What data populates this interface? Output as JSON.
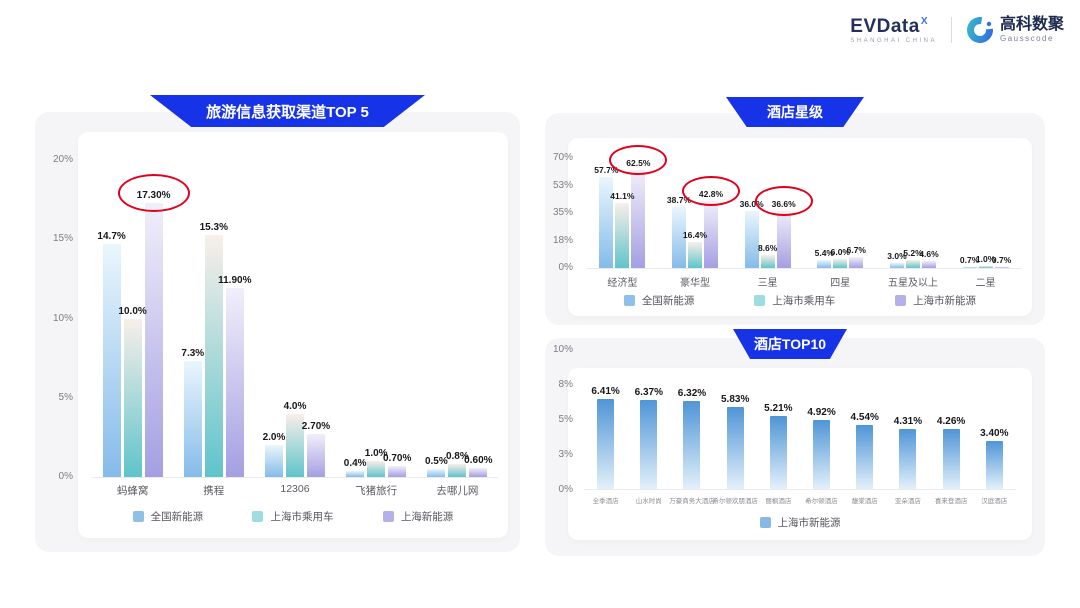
{
  "header": {
    "evdata_logo": {
      "text": "EVData",
      "superscript": "X",
      "subtext": "SHANGHAI CHINA"
    },
    "gausscode_logo": {
      "name": "高科数聚",
      "subtext": "Gausscode"
    }
  },
  "colors": {
    "banner_blue": "#1733e8",
    "highlight_circle_red": "#e3001b",
    "panel_gray": "#f5f5f7"
  },
  "chart_data": [
    {
      "type": "bar",
      "title": "旅游信息获取渠道TOP 5",
      "categories": [
        "蚂蜂窝",
        "携程",
        "12306",
        "飞猪旅行",
        "去哪儿网"
      ],
      "y_ticks": [
        "20%",
        "15%",
        "10%",
        "5%",
        "0%"
      ],
      "ylim": [
        0,
        20
      ],
      "legend_position": "bottom",
      "series": [
        {
          "name": "全国新能源",
          "values": [
            14.7,
            7.3,
            2.0,
            0.4,
            0.5
          ],
          "labels": [
            "14.7%",
            "7.3%",
            "2.0%",
            "0.4%",
            "0.5%"
          ],
          "color": {
            "top": "#eaf6fd",
            "bottom": "#85bbe9",
            "chip": "#8fc0e8"
          },
          "circled": []
        },
        {
          "name": "上海市乘用车",
          "values": [
            10.0,
            15.3,
            4.0,
            1.0,
            0.8
          ],
          "labels": [
            "10.0%",
            "15.3%",
            "4.0%",
            "1.0%",
            "0.8%"
          ],
          "color": {
            "top": "#f8efe9",
            "bottom": "#5fc4cb",
            "chip": "#9edce1"
          },
          "circled": []
        },
        {
          "name": "上海新能源",
          "values": [
            17.3,
            11.9,
            2.7,
            0.7,
            0.6
          ],
          "labels": [
            "17.30%",
            "11.90%",
            "2.70%",
            "0.70%",
            "0.60%"
          ],
          "color": {
            "top": "#f1effa",
            "bottom": "#a49fe2",
            "chip": "#b6b0ea"
          },
          "circled": [
            0
          ]
        }
      ]
    },
    {
      "type": "bar",
      "title": "酒店星级",
      "categories": [
        "经济型",
        "豪华型",
        "三星",
        "四星",
        "五星及以上",
        "二星"
      ],
      "y_ticks": [
        "70%",
        "53%",
        "35%",
        "18%",
        "0%"
      ],
      "ylim": [
        0,
        70
      ],
      "legend_position": "bottom",
      "series": [
        {
          "name": "全国新能源",
          "values": [
            57.7,
            38.7,
            36.0,
            5.4,
            3.0,
            0.7
          ],
          "labels": [
            "57.7%",
            "38.7%",
            "36.0%",
            "5.4%",
            "3.0%",
            "0.7%"
          ],
          "color": {
            "top": "#eaf6fd",
            "bottom": "#85bbe9",
            "chip": "#8fc0e8"
          },
          "circled": []
        },
        {
          "name": "上海市乘用车",
          "values": [
            41.1,
            16.4,
            8.6,
            6.0,
            5.2,
            1.0
          ],
          "labels": [
            "41.1%",
            "16.4%",
            "8.6%",
            "6.0%",
            "5.2%",
            "1.0%"
          ],
          "color": {
            "top": "#f8efe9",
            "bottom": "#5fc4cb",
            "chip": "#9edce1"
          },
          "circled": []
        },
        {
          "name": "上海市新能源",
          "values": [
            62.5,
            42.8,
            36.6,
            6.7,
            4.6,
            0.7
          ],
          "labels": [
            "62.5%",
            "42.8%",
            "36.6%",
            "6.7%",
            "4.6%",
            "0.7%"
          ],
          "color": {
            "top": "#f1effa",
            "bottom": "#a49fe2",
            "chip": "#b6b0ea"
          },
          "circled": [
            0,
            1,
            2
          ]
        }
      ]
    },
    {
      "type": "bar",
      "title": "酒店TOP10",
      "categories": [
        "全季酒店",
        "山水时尚",
        "万豪商务大酒店",
        "希尔顿欢朋酒店",
        "丽枫酒店",
        "希尔顿酒店",
        "馥棠酒店",
        "亚朵酒店",
        "喜来登酒店",
        "汉庭酒店"
      ],
      "y_ticks": [
        "10%",
        "8%",
        "5%",
        "3%",
        "0%"
      ],
      "ylim": [
        0,
        10
      ],
      "legend_position": "bottom",
      "series": [
        {
          "name": "上海市新能源",
          "values": [
            6.41,
            6.37,
            6.32,
            5.83,
            5.21,
            4.92,
            4.54,
            4.31,
            4.26,
            3.4
          ],
          "labels": [
            "6.41%",
            "6.37%",
            "6.32%",
            "5.83%",
            "5.21%",
            "4.92%",
            "4.54%",
            "4.31%",
            "4.26%",
            "3.40%"
          ],
          "color": {
            "top": "#4f95d6",
            "bottom": "#e3f0fa",
            "chip": "#86b9e6"
          },
          "circled": []
        }
      ]
    }
  ]
}
